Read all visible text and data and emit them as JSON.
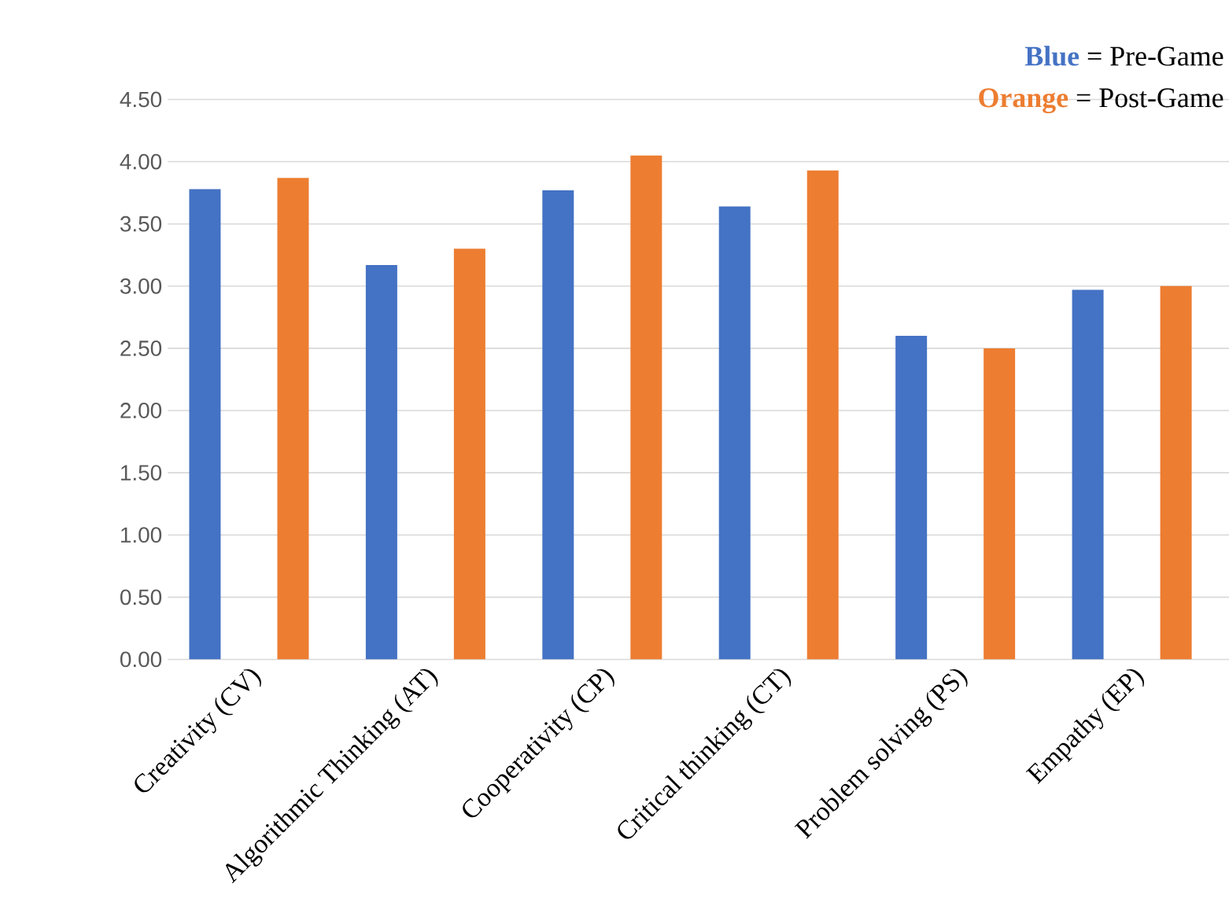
{
  "chart_data": {
    "type": "bar",
    "categories": [
      "Creativity (CV)",
      "Algorithmic Thinking (AT)",
      "Cooperativity (CP)",
      "Critical thinking (CT)",
      "Problem solving (PS)",
      "Empathy (EP)"
    ],
    "series": [
      {
        "color": "#4472c4",
        "values": [
          3.78,
          3.17,
          3.77,
          3.64,
          2.6,
          2.97
        ]
      },
      {
        "color": "#ed7d31",
        "values": [
          3.87,
          3.3,
          4.05,
          3.93,
          2.5,
          3.0
        ]
      }
    ],
    "ylim": [
      0,
      4.5
    ],
    "yticks": [
      {
        "value": 0,
        "label": "0.00"
      },
      {
        "value": 0.5,
        "label": "0.50"
      },
      {
        "value": 1,
        "label": "1.00"
      },
      {
        "value": 1.5,
        "label": "1.50"
      },
      {
        "value": 2,
        "label": "2.00"
      },
      {
        "value": 2.5,
        "label": "2.50"
      },
      {
        "value": 3,
        "label": "3.00"
      },
      {
        "value": 3.5,
        "label": "3.50"
      },
      {
        "value": 4,
        "label": "4.00"
      },
      {
        "value": 4.5,
        "label": "4.50"
      }
    ],
    "grid": "y",
    "annotations": [
      "**Blue** = Pre-Game",
      "**Orange** = Post-Game"
    ]
  }
}
